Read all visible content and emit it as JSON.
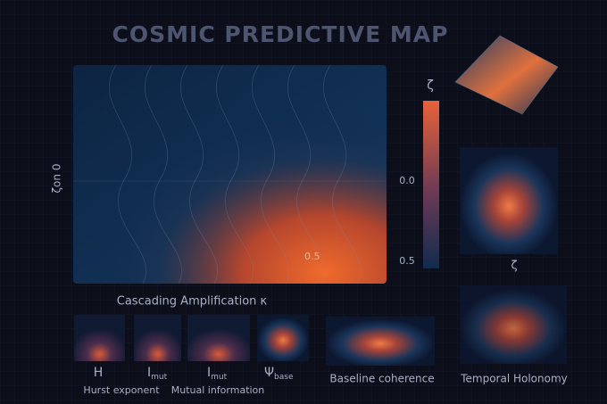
{
  "title": "COSMIC PREDICTIVE MAP",
  "main_map": {
    "y_label": "ζon 0",
    "x_label": "Cascading Amplification κ",
    "contour_label": "0.5"
  },
  "colorbar": {
    "title": "ζ",
    "ticks": [
      "0.0",
      "0.5"
    ]
  },
  "bottom_panels": [
    {
      "symbol": "H"
    },
    {
      "symbol": "I",
      "subscript": "mut"
    },
    {
      "symbol": "I",
      "subscript": "mut"
    },
    {
      "symbol": "Ψ",
      "subscript": "base"
    }
  ],
  "bottom_captions": [
    "Hurst exponent",
    "Mutual information"
  ],
  "baseline": {
    "caption": "Baseline coherence"
  },
  "side": {
    "label": "ζ",
    "caption": "Temporal Holonomy"
  }
}
